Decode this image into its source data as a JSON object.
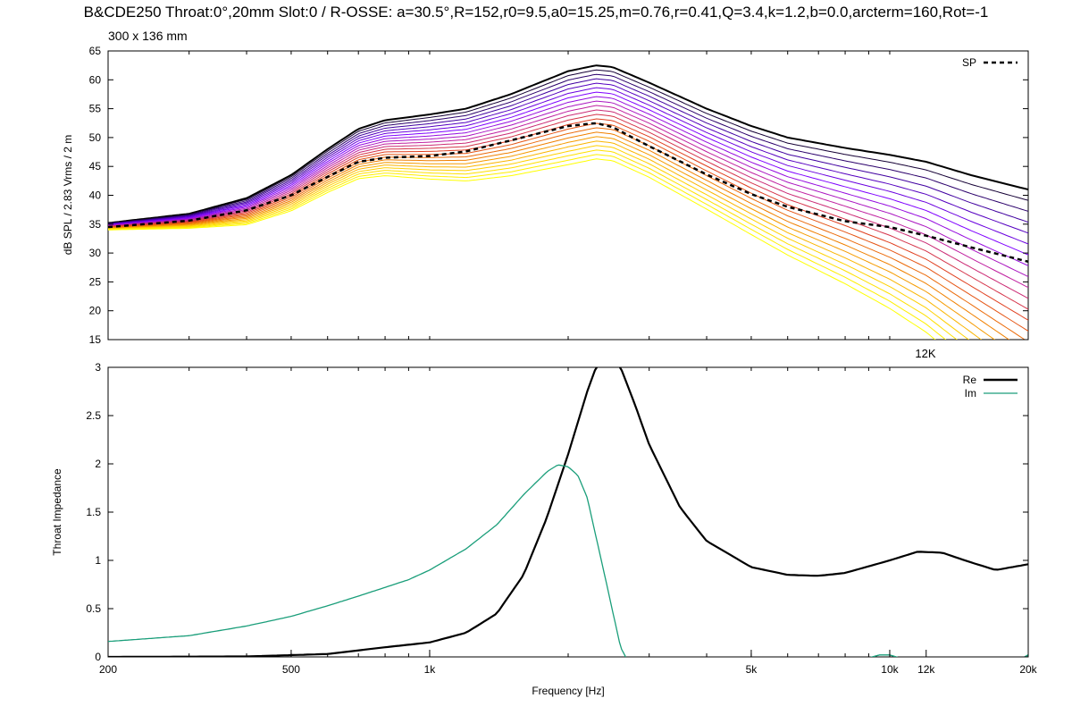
{
  "title": "B&CDE250 Throat:0°,20mm Slot:0 / R-OSSE: a=30.5°,R=152,r0=9.5,a0=15.25,m=0.76,r=0.41,Q=3.4,k=1.2,b=0.0,arcterm=160,Rot=-1",
  "subtitle": "300 x 136 mm",
  "chart_data": [
    {
      "type": "line",
      "ylabel": "dB SPL / 2.83 Vrms / 2 m",
      "xscale": "log",
      "xlim": [
        200,
        20000
      ],
      "ylim": [
        15,
        65
      ],
      "yticks": [
        "15",
        "20",
        "25",
        "30",
        "35",
        "40",
        "45",
        "50",
        "55",
        "60",
        "65"
      ],
      "annotation": "12K",
      "legend_position": "top-right",
      "legend": [
        {
          "label": "SP",
          "style": "dashed",
          "color": "#000000"
        }
      ],
      "palette": [
        "#000000",
        "#4000a0",
        "#7f00ff",
        "#c020a0",
        "#e04020",
        "#f08000",
        "#ffd000",
        "#ffff00"
      ],
      "base_curve": {
        "x": [
          200,
          300,
          400,
          500,
          600,
          700,
          800,
          1000,
          1200,
          1500,
          2000,
          2300,
          2500,
          3000,
          4000,
          5000,
          6000,
          8000,
          10000,
          12000,
          15000,
          20000
        ],
        "y": [
          35.2,
          36.8,
          39.5,
          43.5,
          48.0,
          51.5,
          53.0,
          54.0,
          55.0,
          57.5,
          61.5,
          62.5,
          62.2,
          59.5,
          55.0,
          52.0,
          50.0,
          48.2,
          47.0,
          45.8,
          43.5,
          41.0
        ]
      },
      "series": [
        {
          "name": "SP",
          "style": "dashed",
          "x": [
            200,
            300,
            400,
            500,
            600,
            700,
            800,
            1000,
            1200,
            1500,
            2000,
            2300,
            2500,
            3000,
            4000,
            5000,
            6000,
            8000,
            10000,
            12000,
            15000,
            20000
          ],
          "y": [
            34.5,
            35.6,
            37.4,
            40.0,
            43.2,
            45.8,
            46.5,
            46.8,
            47.6,
            49.5,
            52.0,
            52.5,
            51.8,
            48.5,
            43.6,
            40.2,
            38.0,
            35.5,
            34.5,
            33.0,
            31.0,
            28.5
          ]
        }
      ]
    },
    {
      "type": "line",
      "xlabel": "Frequency [Hz]",
      "ylabel": "Throat Impedance",
      "xscale": "log",
      "xlim": [
        200,
        20000
      ],
      "ylim": [
        0,
        3
      ],
      "yticks": [
        "0",
        "0.5",
        "1",
        "1.5",
        "2",
        "2.5",
        "3"
      ],
      "xticks": [
        {
          "value": 200,
          "label": "200"
        },
        {
          "value": 500,
          "label": "500"
        },
        {
          "value": 1000,
          "label": "1k"
        },
        {
          "value": 5000,
          "label": "5k"
        },
        {
          "value": 10000,
          "label": "10k"
        },
        {
          "value": 12000,
          "label": "12k"
        },
        {
          "value": 20000,
          "label": "20k"
        }
      ],
      "legend_position": "top-right",
      "series": [
        {
          "name": "Re",
          "color": "#000000",
          "x": [
            200,
            400,
            600,
            800,
            1000,
            1200,
            1400,
            1600,
            1800,
            2000,
            2200,
            2300,
            2400,
            2500,
            2600,
            2800,
            3000,
            3500,
            4000,
            5000,
            6000,
            7000,
            8000,
            10000,
            11500,
            13000,
            15000,
            17000,
            20000
          ],
          "y": [
            0.0,
            0.005,
            0.03,
            0.1,
            0.15,
            0.25,
            0.45,
            0.85,
            1.45,
            2.1,
            2.75,
            3.0,
            3.1,
            3.1,
            3.0,
            2.6,
            2.2,
            1.55,
            1.2,
            0.93,
            0.85,
            0.84,
            0.87,
            1.0,
            1.09,
            1.08,
            0.98,
            0.9,
            0.96
          ]
        },
        {
          "name": "Im",
          "color": "#1a9e7a",
          "x": [
            200,
            300,
            400,
            500,
            600,
            700,
            800,
            900,
            1000,
            1200,
            1400,
            1600,
            1800,
            1900,
            2000,
            2100,
            2200,
            2400,
            2600,
            2700
          ],
          "y": [
            0.16,
            0.22,
            0.32,
            0.42,
            0.53,
            0.63,
            0.72,
            0.8,
            0.9,
            1.12,
            1.37,
            1.68,
            1.92,
            1.99,
            1.97,
            1.88,
            1.65,
            0.85,
            0.1,
            -0.05
          ]
        },
        {
          "name": "",
          "color": "#1a9e7a",
          "x": [
            9000,
            9500,
            10000,
            10500
          ],
          "y": [
            -0.01,
            0.02,
            0.02,
            -0.01
          ]
        },
        {
          "name": "",
          "color": "#1a9e7a",
          "x": [
            19500,
            20000
          ],
          "y": [
            -0.01,
            0.02
          ]
        }
      ]
    }
  ]
}
